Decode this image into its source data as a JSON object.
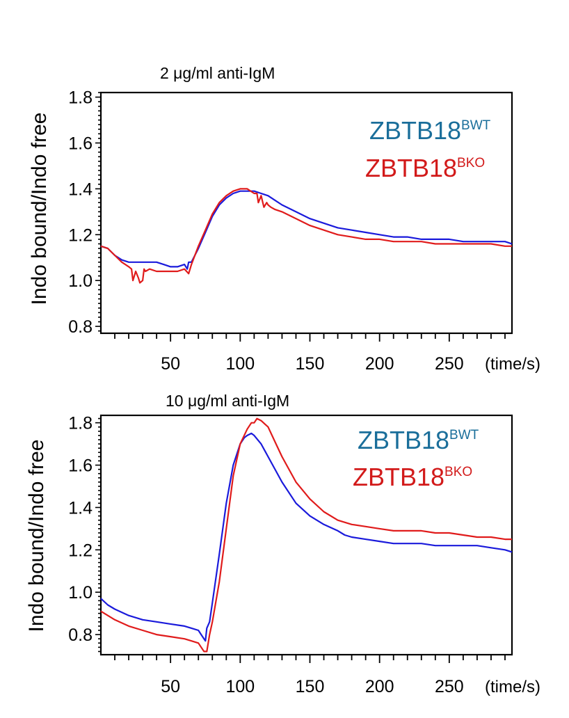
{
  "chart_data": [
    {
      "type": "line",
      "title": "2 μg/ml anti-IgM",
      "ylabel": "Indo bound/Indo free",
      "xlabel": "(time/s)",
      "xlim": [
        0,
        295
      ],
      "ylim": [
        0.77,
        1.82
      ],
      "x_ticks": [
        50,
        100,
        150,
        200,
        250
      ],
      "y_ticks": [
        0.8,
        1.0,
        1.2,
        1.4,
        1.6,
        1.8
      ],
      "y_tick_labels": [
        "0.8",
        "1.0",
        "1.2",
        "1.4",
        "1.6",
        "1.8"
      ],
      "legend_position": "top-right",
      "series": [
        {
          "name": "ZBTB18",
          "superscript": "BWT",
          "color": "#1a1adb",
          "legend_color": "#1a6e9a",
          "x": [
            0,
            5,
            10,
            15,
            20,
            25,
            30,
            35,
            40,
            45,
            50,
            55,
            60,
            62,
            63,
            65,
            70,
            75,
            80,
            85,
            90,
            95,
            100,
            105,
            110,
            115,
            120,
            125,
            130,
            140,
            150,
            160,
            170,
            180,
            190,
            200,
            210,
            220,
            230,
            240,
            250,
            260,
            270,
            280,
            290,
            295
          ],
          "y": [
            1.15,
            1.14,
            1.11,
            1.09,
            1.08,
            1.08,
            1.08,
            1.08,
            1.08,
            1.07,
            1.06,
            1.06,
            1.07,
            1.05,
            1.08,
            1.08,
            1.14,
            1.21,
            1.28,
            1.33,
            1.36,
            1.38,
            1.39,
            1.39,
            1.39,
            1.38,
            1.37,
            1.35,
            1.33,
            1.3,
            1.27,
            1.25,
            1.23,
            1.22,
            1.21,
            1.2,
            1.19,
            1.19,
            1.18,
            1.18,
            1.18,
            1.17,
            1.17,
            1.17,
            1.17,
            1.16
          ]
        },
        {
          "name": "ZBTB18",
          "superscript": "BKO",
          "color": "#e01b1b",
          "legend_color": "#d21a1a",
          "x": [
            0,
            5,
            10,
            15,
            20,
            22,
            23,
            25,
            27,
            28,
            30,
            31,
            32,
            35,
            40,
            45,
            50,
            55,
            60,
            63,
            65,
            70,
            75,
            80,
            85,
            90,
            95,
            100,
            103,
            105,
            110,
            112,
            113,
            115,
            117,
            119,
            120,
            122,
            125,
            130,
            140,
            150,
            160,
            170,
            180,
            190,
            200,
            210,
            220,
            230,
            240,
            250,
            260,
            270,
            280,
            290,
            295
          ],
          "y": [
            1.15,
            1.14,
            1.11,
            1.08,
            1.06,
            1.05,
            1.0,
            1.04,
            1.01,
            0.99,
            1.0,
            1.05,
            1.04,
            1.05,
            1.04,
            1.04,
            1.04,
            1.04,
            1.05,
            1.03,
            1.07,
            1.15,
            1.22,
            1.29,
            1.34,
            1.37,
            1.39,
            1.4,
            1.4,
            1.4,
            1.38,
            1.38,
            1.34,
            1.37,
            1.32,
            1.34,
            1.33,
            1.32,
            1.31,
            1.3,
            1.27,
            1.24,
            1.22,
            1.2,
            1.19,
            1.18,
            1.18,
            1.17,
            1.17,
            1.17,
            1.16,
            1.16,
            1.16,
            1.16,
            1.16,
            1.15,
            1.15
          ]
        }
      ]
    },
    {
      "type": "line",
      "title": "10 μg/ml anti-IgM",
      "ylabel": "Indo bound/Indo free",
      "xlabel": "(time/s)",
      "xlim": [
        0,
        295
      ],
      "ylim": [
        0.705,
        1.835
      ],
      "x_ticks": [
        50,
        100,
        150,
        200,
        250
      ],
      "y_ticks": [
        0.8,
        1.0,
        1.2,
        1.4,
        1.6,
        1.8
      ],
      "y_tick_labels": [
        "0.8",
        "1.0",
        "1.2",
        "1.4",
        "1.6",
        "1.8"
      ],
      "legend_position": "top-right",
      "series": [
        {
          "name": "ZBTB18",
          "superscript": "BWT",
          "color": "#1a1adb",
          "legend_color": "#1a6e9a",
          "x": [
            0,
            5,
            10,
            20,
            30,
            40,
            50,
            60,
            65,
            70,
            72,
            74,
            75,
            76,
            78,
            80,
            85,
            90,
            95,
            100,
            103,
            105,
            108,
            110,
            115,
            120,
            125,
            130,
            140,
            150,
            160,
            170,
            175,
            180,
            190,
            200,
            210,
            220,
            230,
            240,
            250,
            260,
            270,
            280,
            290,
            295
          ],
          "y": [
            0.97,
            0.94,
            0.92,
            0.89,
            0.87,
            0.86,
            0.85,
            0.84,
            0.83,
            0.82,
            0.8,
            0.78,
            0.77,
            0.83,
            0.86,
            0.95,
            1.18,
            1.42,
            1.6,
            1.7,
            1.73,
            1.74,
            1.75,
            1.74,
            1.7,
            1.64,
            1.58,
            1.52,
            1.42,
            1.36,
            1.32,
            1.29,
            1.27,
            1.26,
            1.25,
            1.24,
            1.23,
            1.23,
            1.23,
            1.22,
            1.22,
            1.22,
            1.22,
            1.21,
            1.2,
            1.19
          ]
        },
        {
          "name": "ZBTB18",
          "superscript": "BKO",
          "color": "#e01b1b",
          "legend_color": "#d21a1a",
          "x": [
            0,
            5,
            10,
            20,
            30,
            40,
            50,
            60,
            65,
            70,
            72,
            74,
            76,
            77,
            78,
            80,
            85,
            90,
            95,
            100,
            105,
            108,
            110,
            112,
            115,
            120,
            125,
            130,
            140,
            150,
            160,
            170,
            180,
            190,
            200,
            210,
            220,
            230,
            240,
            250,
            260,
            270,
            280,
            290,
            295
          ],
          "y": [
            0.91,
            0.89,
            0.87,
            0.84,
            0.82,
            0.8,
            0.79,
            0.78,
            0.77,
            0.76,
            0.74,
            0.72,
            0.72,
            0.76,
            0.8,
            0.86,
            1.05,
            1.3,
            1.55,
            1.7,
            1.77,
            1.8,
            1.8,
            1.82,
            1.81,
            1.78,
            1.71,
            1.64,
            1.52,
            1.44,
            1.38,
            1.34,
            1.32,
            1.31,
            1.3,
            1.29,
            1.29,
            1.29,
            1.28,
            1.28,
            1.27,
            1.26,
            1.26,
            1.25,
            1.25
          ]
        }
      ]
    }
  ]
}
